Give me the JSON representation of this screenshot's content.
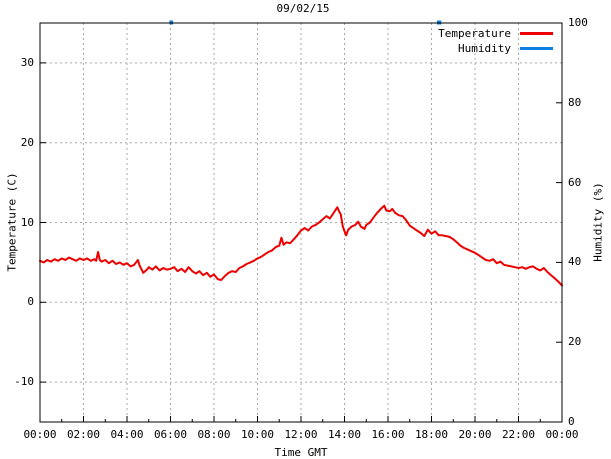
{
  "chart_data": {
    "type": "line",
    "title": "09/02/15",
    "xlabel": "Time GMT",
    "ylabel": "Temperature (C)",
    "y2label": "Humidity (%)",
    "grid": {
      "shown": true,
      "color": "#a8a8a8",
      "style": "dashed"
    },
    "x_axis": {
      "unit": "hours",
      "min": 0,
      "max": 24,
      "major_ticks": [
        {
          "hour": 0,
          "label": "00:00"
        },
        {
          "hour": 2,
          "label": "02:00"
        },
        {
          "hour": 4,
          "label": "04:00"
        },
        {
          "hour": 6,
          "label": "06:00"
        },
        {
          "hour": 8,
          "label": "08:00"
        },
        {
          "hour": 10,
          "label": "10:00"
        },
        {
          "hour": 12,
          "label": "12:00"
        },
        {
          "hour": 14,
          "label": "14:00"
        },
        {
          "hour": 16,
          "label": "16:00"
        },
        {
          "hour": 18,
          "label": "18:00"
        },
        {
          "hour": 20,
          "label": "20:00"
        },
        {
          "hour": 22,
          "label": "22:00"
        },
        {
          "hour": 24,
          "label": "00:00"
        }
      ],
      "minor_tick_hours": [
        1,
        3,
        5,
        7,
        9,
        11,
        13,
        15,
        17,
        19,
        21,
        23
      ]
    },
    "y_axis": {
      "min": -15,
      "max": 35,
      "ticks": [
        {
          "value": -10,
          "label": "-10"
        },
        {
          "value": 0,
          "label": "0"
        },
        {
          "value": 10,
          "label": "10"
        },
        {
          "value": 20,
          "label": "20"
        },
        {
          "value": 30,
          "label": "30"
        }
      ]
    },
    "y2_axis": {
      "min": 0,
      "max": 100,
      "ticks": [
        {
          "value": 0,
          "label": "0"
        },
        {
          "value": 20,
          "label": "20"
        },
        {
          "value": 40,
          "label": "40"
        },
        {
          "value": 60,
          "label": "60"
        },
        {
          "value": 80,
          "label": "80"
        },
        {
          "value": 100,
          "label": "100"
        }
      ]
    },
    "legend": {
      "position": "top-right-inside",
      "entries": [
        {
          "label": "Temperature",
          "color": "#ee0000"
        },
        {
          "label": "Humidity",
          "color": "#0c80e0"
        }
      ]
    },
    "series": [
      {
        "name": "Temperature",
        "axis": "y",
        "color": "#ee0000",
        "points": [
          [
            0.0,
            5.2
          ],
          [
            0.17,
            5.0
          ],
          [
            0.33,
            5.3
          ],
          [
            0.5,
            5.1
          ],
          [
            0.67,
            5.4
          ],
          [
            0.83,
            5.2
          ],
          [
            1.0,
            5.5
          ],
          [
            1.17,
            5.3
          ],
          [
            1.33,
            5.6
          ],
          [
            1.5,
            5.4
          ],
          [
            1.67,
            5.2
          ],
          [
            1.83,
            5.5
          ],
          [
            2.0,
            5.3
          ],
          [
            2.17,
            5.5
          ],
          [
            2.33,
            5.2
          ],
          [
            2.5,
            5.4
          ],
          [
            2.58,
            5.2
          ],
          [
            2.67,
            6.3
          ],
          [
            2.75,
            5.3
          ],
          [
            2.83,
            5.1
          ],
          [
            3.0,
            5.3
          ],
          [
            3.17,
            4.9
          ],
          [
            3.33,
            5.2
          ],
          [
            3.5,
            4.8
          ],
          [
            3.67,
            5.0
          ],
          [
            3.83,
            4.7
          ],
          [
            4.0,
            4.9
          ],
          [
            4.17,
            4.5
          ],
          [
            4.33,
            4.7
          ],
          [
            4.5,
            5.3
          ],
          [
            4.58,
            4.6
          ],
          [
            4.75,
            3.7
          ],
          [
            4.92,
            4.1
          ],
          [
            5.0,
            4.4
          ],
          [
            5.17,
            4.1
          ],
          [
            5.33,
            4.5
          ],
          [
            5.5,
            4.0
          ],
          [
            5.67,
            4.3
          ],
          [
            5.83,
            4.1
          ],
          [
            6.0,
            4.2
          ],
          [
            6.17,
            4.4
          ],
          [
            6.33,
            3.9
          ],
          [
            6.5,
            4.2
          ],
          [
            6.67,
            3.8
          ],
          [
            6.83,
            4.4
          ],
          [
            7.0,
            3.9
          ],
          [
            7.17,
            3.6
          ],
          [
            7.33,
            3.9
          ],
          [
            7.5,
            3.4
          ],
          [
            7.67,
            3.7
          ],
          [
            7.83,
            3.2
          ],
          [
            8.0,
            3.5
          ],
          [
            8.17,
            2.9
          ],
          [
            8.33,
            2.8
          ],
          [
            8.5,
            3.3
          ],
          [
            8.67,
            3.7
          ],
          [
            8.83,
            3.9
          ],
          [
            9.0,
            3.8
          ],
          [
            9.17,
            4.3
          ],
          [
            9.33,
            4.5
          ],
          [
            9.5,
            4.8
          ],
          [
            9.67,
            5.0
          ],
          [
            9.83,
            5.2
          ],
          [
            10.0,
            5.5
          ],
          [
            10.17,
            5.7
          ],
          [
            10.33,
            6.0
          ],
          [
            10.5,
            6.3
          ],
          [
            10.67,
            6.5
          ],
          [
            10.83,
            6.9
          ],
          [
            11.0,
            7.1
          ],
          [
            11.1,
            8.1
          ],
          [
            11.2,
            7.2
          ],
          [
            11.33,
            7.5
          ],
          [
            11.5,
            7.4
          ],
          [
            11.67,
            7.9
          ],
          [
            11.83,
            8.4
          ],
          [
            12.0,
            9.0
          ],
          [
            12.17,
            9.3
          ],
          [
            12.33,
            9.0
          ],
          [
            12.5,
            9.5
          ],
          [
            12.67,
            9.7
          ],
          [
            12.83,
            10.0
          ],
          [
            13.0,
            10.4
          ],
          [
            13.17,
            10.8
          ],
          [
            13.33,
            10.5
          ],
          [
            13.5,
            11.2
          ],
          [
            13.67,
            11.9
          ],
          [
            13.75,
            11.4
          ],
          [
            13.83,
            11.0
          ],
          [
            13.92,
            9.5
          ],
          [
            14.0,
            8.9
          ],
          [
            14.08,
            8.4
          ],
          [
            14.17,
            9.1
          ],
          [
            14.33,
            9.5
          ],
          [
            14.5,
            9.7
          ],
          [
            14.63,
            10.1
          ],
          [
            14.75,
            9.5
          ],
          [
            14.92,
            9.2
          ],
          [
            15.0,
            9.7
          ],
          [
            15.17,
            10.0
          ],
          [
            15.33,
            10.6
          ],
          [
            15.5,
            11.2
          ],
          [
            15.67,
            11.7
          ],
          [
            15.83,
            12.1
          ],
          [
            15.92,
            11.5
          ],
          [
            16.08,
            11.4
          ],
          [
            16.2,
            11.7
          ],
          [
            16.33,
            11.2
          ],
          [
            16.5,
            10.9
          ],
          [
            16.67,
            10.8
          ],
          [
            16.83,
            10.3
          ],
          [
            17.0,
            9.6
          ],
          [
            17.17,
            9.3
          ],
          [
            17.33,
            9.0
          ],
          [
            17.5,
            8.7
          ],
          [
            17.67,
            8.3
          ],
          [
            17.83,
            9.1
          ],
          [
            18.0,
            8.6
          ],
          [
            18.17,
            8.9
          ],
          [
            18.33,
            8.4
          ],
          [
            18.5,
            8.4
          ],
          [
            18.67,
            8.3
          ],
          [
            18.83,
            8.2
          ],
          [
            19.0,
            7.9
          ],
          [
            19.17,
            7.5
          ],
          [
            19.33,
            7.1
          ],
          [
            19.5,
            6.8
          ],
          [
            19.67,
            6.6
          ],
          [
            19.83,
            6.4
          ],
          [
            20.0,
            6.2
          ],
          [
            20.17,
            5.9
          ],
          [
            20.33,
            5.6
          ],
          [
            20.5,
            5.3
          ],
          [
            20.67,
            5.2
          ],
          [
            20.83,
            5.4
          ],
          [
            21.0,
            4.9
          ],
          [
            21.17,
            5.1
          ],
          [
            21.33,
            4.7
          ],
          [
            21.5,
            4.6
          ],
          [
            21.67,
            4.5
          ],
          [
            21.83,
            4.4
          ],
          [
            22.0,
            4.3
          ],
          [
            22.17,
            4.4
          ],
          [
            22.33,
            4.2
          ],
          [
            22.5,
            4.4
          ],
          [
            22.67,
            4.5
          ],
          [
            22.83,
            4.2
          ],
          [
            23.0,
            4.0
          ],
          [
            23.17,
            4.3
          ],
          [
            23.33,
            3.8
          ],
          [
            23.5,
            3.4
          ],
          [
            23.67,
            3.0
          ],
          [
            23.83,
            2.6
          ],
          [
            24.0,
            2.1
          ]
        ]
      },
      {
        "name": "Humidity",
        "axis": "y2",
        "color": "#0c80e0",
        "note": "humidity pegged at 100%; only visible as marks on the top border",
        "segments": [
          [
            [
              5.95,
              100
            ],
            [
              6.12,
              100
            ]
          ],
          [
            [
              18.25,
              100
            ],
            [
              18.45,
              100
            ]
          ]
        ]
      }
    ]
  }
}
